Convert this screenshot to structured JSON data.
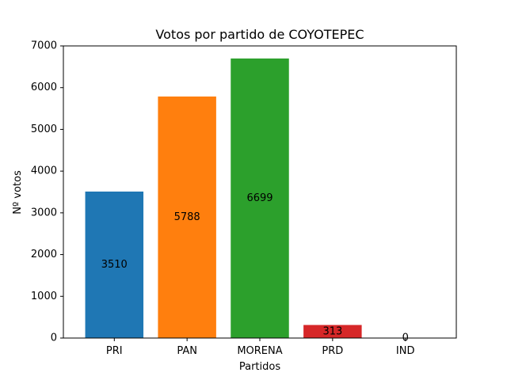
{
  "chart_data": {
    "type": "bar",
    "title": "Votos por partido de COYOTEPEC",
    "xlabel": "Partidos",
    "ylabel": "Nº votos",
    "categories": [
      "PRI",
      "PAN",
      "MORENA",
      "PRD",
      "IND"
    ],
    "values": [
      3510,
      5788,
      6699,
      313,
      0
    ],
    "value_labels": [
      "3510",
      "5788",
      "6699",
      "313",
      "0"
    ],
    "colors": [
      "#1f77b4",
      "#ff7f0e",
      "#2ca02c",
      "#d62728",
      "#9467bd"
    ],
    "ylim": [
      0,
      7000
    ],
    "yticks": [
      0,
      1000,
      2000,
      3000,
      4000,
      5000,
      6000,
      7000
    ],
    "ytick_labels": [
      "0",
      "1000",
      "2000",
      "3000",
      "4000",
      "5000",
      "6000",
      "7000"
    ],
    "grid": false,
    "legend": "none"
  }
}
